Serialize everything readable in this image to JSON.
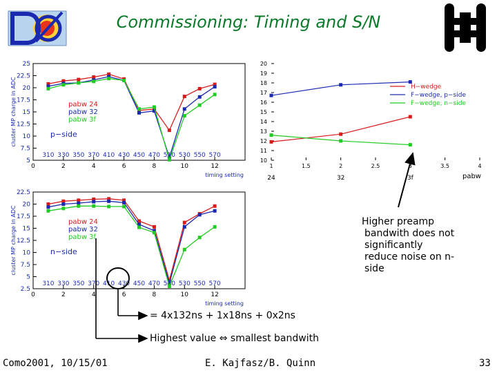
{
  "slide": {
    "title": "Commissioning: Timing and S/N",
    "footer_left": "Como2001, 10/15/01",
    "footer_center": "E. Kajfasz/B. Quinn",
    "footer_right": "33",
    "note": [
      "Higher preamp",
      "bandwith does not",
      "significantly",
      "reduce noise on n-",
      "side"
    ],
    "formula": "= 4x132ns + 1x18ns + 0x2ns",
    "highest": "Highest value ⇔ smallest bandwith",
    "colors": {
      "title": "#0a7a2a",
      "red": "#d81c1c",
      "blue": "#1a2ab0",
      "green": "#22cc22",
      "text": "#1a2ab0"
    }
  },
  "chart_data": [
    {
      "type": "line",
      "ylabel": "cluster MP charge in ADC",
      "xlabel": "timing setting",
      "xlim": [
        0,
        14
      ],
      "ylim": [
        5,
        25
      ],
      "xticks": [
        0,
        2,
        4,
        6,
        8,
        10,
        12
      ],
      "yticks": [
        "5",
        "7.5",
        "10",
        "12.5",
        "15",
        "17.5",
        "20",
        "22.5",
        "25"
      ],
      "ns_labels": [
        "310",
        "330",
        "350",
        "370",
        "410",
        "430",
        "450",
        "470",
        "510",
        "530",
        "550",
        "570"
      ],
      "side_label": "p−side",
      "x": [
        1,
        2,
        3,
        4,
        5,
        6,
        7,
        8,
        9,
        10,
        11,
        12
      ],
      "series": [
        {
          "name": "pabw 24",
          "color": "#d81c1c",
          "values": [
            20.8,
            21.4,
            21.7,
            22.2,
            22.8,
            21.8,
            15.3,
            15.6,
            11.2,
            18.2,
            19.8,
            20.7
          ]
        },
        {
          "name": "pabw 32",
          "color": "#1a2ab0",
          "values": [
            20.3,
            20.9,
            21.0,
            21.6,
            22.3,
            21.5,
            14.8,
            15.2,
            5.6,
            15.6,
            18.1,
            20.2
          ]
        },
        {
          "name": "pabw 3f",
          "color": "#22cc22",
          "values": [
            19.8,
            20.6,
            21.0,
            21.3,
            21.9,
            21.5,
            15.6,
            16.0,
            5.1,
            14.2,
            16.4,
            18.6
          ]
        }
      ]
    },
    {
      "type": "line",
      "ylabel": "cluster MP charge in ADC",
      "xlabel": "timing setting",
      "xlim": [
        0,
        14
      ],
      "ylim": [
        2.5,
        22.5
      ],
      "xticks": [
        0,
        2,
        4,
        6,
        8,
        10,
        12
      ],
      "yticks": [
        "2.5",
        "5",
        "7.5",
        "10",
        "12.5",
        "15",
        "17.5",
        "20",
        "22.5"
      ],
      "ns_labels": [
        "310",
        "330",
        "350",
        "370",
        "410",
        "430",
        "450",
        "470",
        "510",
        "530",
        "550",
        "570"
      ],
      "side_label": "n−side",
      "x": [
        1,
        2,
        3,
        4,
        5,
        6,
        7,
        8,
        9,
        10,
        11,
        12
      ],
      "series": [
        {
          "name": "pabw 24",
          "color": "#d81c1c",
          "values": [
            20.0,
            20.6,
            20.8,
            21.0,
            21.1,
            20.8,
            16.5,
            15.3,
            4.2,
            16.2,
            18.0,
            19.6
          ]
        },
        {
          "name": "pabw 32",
          "color": "#1a2ab0",
          "values": [
            19.4,
            20.0,
            20.2,
            20.5,
            20.6,
            20.3,
            15.8,
            14.5,
            3.6,
            15.3,
            17.8,
            18.6
          ]
        },
        {
          "name": "pabw 3f",
          "color": "#22cc22",
          "values": [
            18.6,
            19.1,
            19.6,
            19.6,
            19.5,
            19.5,
            15.2,
            14.1,
            3.0,
            10.6,
            13.1,
            15.3
          ]
        }
      ]
    },
    {
      "type": "line",
      "xlim": [
        1,
        4
      ],
      "ylim": [
        10,
        20
      ],
      "xticks": [
        "1",
        "1.5",
        "2",
        "2.5",
        "3",
        "3.5",
        "4"
      ],
      "yticks": [
        "10",
        "11",
        "12",
        "13",
        "14",
        "15",
        "16",
        "17",
        "18",
        "19",
        "20"
      ],
      "category_labels": [
        "24",
        "32",
        "3f"
      ],
      "xlabel": "pabw",
      "x": [
        1,
        2,
        3
      ],
      "series": [
        {
          "name": "H−wedge",
          "color": "#d81c1c",
          "values": [
            11.9,
            12.7,
            14.5
          ]
        },
        {
          "name": "F−wedge, p−side",
          "color": "#1a2ab0",
          "values": [
            16.7,
            17.8,
            18.1
          ]
        },
        {
          "name": "F−wedge, n−side",
          "color": "#22cc22",
          "values": [
            12.6,
            12.0,
            11.6
          ]
        }
      ]
    }
  ]
}
